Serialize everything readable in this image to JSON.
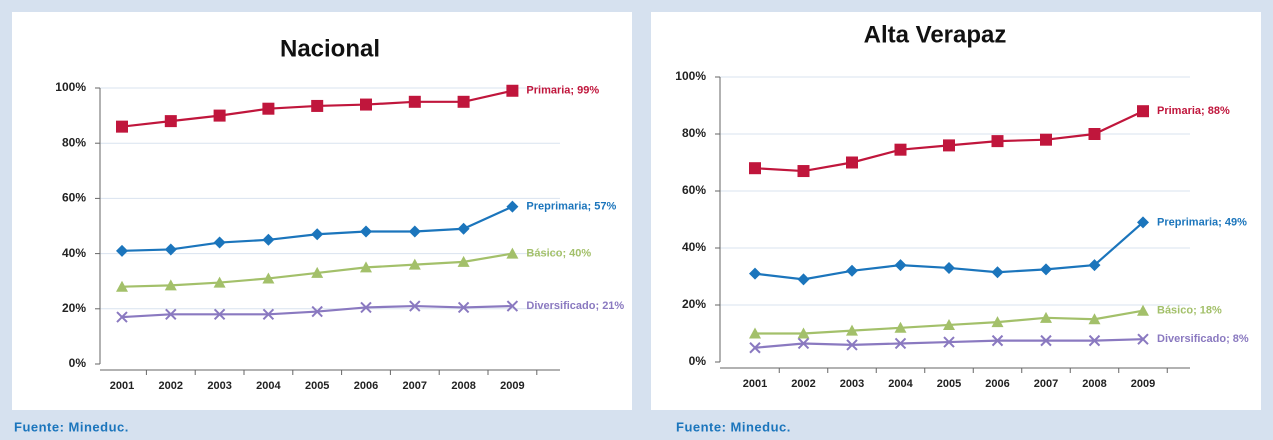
{
  "chart_data": [
    {
      "type": "line",
      "title": "Nacional",
      "source": "Fuente: Mineduc.",
      "categories": [
        "2001",
        "2002",
        "2003",
        "2004",
        "2005",
        "2006",
        "2007",
        "2008",
        "2009"
      ],
      "ylim": [
        0,
        100
      ],
      "yticks": [
        {
          "value": 0,
          "label": "0%"
        },
        {
          "value": 20,
          "label": "20%"
        },
        {
          "value": 40,
          "label": "40%"
        },
        {
          "value": 60,
          "label": "60%"
        },
        {
          "value": 80,
          "label": "80%"
        },
        {
          "value": 100,
          "label": "100%"
        }
      ],
      "grid": true,
      "series": [
        {
          "name": "Primaria",
          "color": "#c0163c",
          "marker": "square",
          "values": [
            86,
            88,
            90,
            92.5,
            93.5,
            94,
            95,
            95,
            99
          ],
          "value_labels": [
            null,
            null,
            null,
            null,
            null,
            null,
            null,
            null,
            "Primaria; 99%"
          ]
        },
        {
          "name": "Preprimaria",
          "color": "#1b75bc",
          "marker": "diamond",
          "values": [
            41,
            41.5,
            44,
            45,
            47,
            48,
            48,
            49,
            57
          ],
          "value_labels": [
            null,
            null,
            null,
            null,
            null,
            null,
            null,
            null,
            "Preprimaria; 57%"
          ]
        },
        {
          "name": "Básico",
          "color": "#a3c06a",
          "marker": "triangle",
          "values": [
            28,
            28.5,
            29.5,
            31,
            33,
            35,
            36,
            37,
            40
          ],
          "value_labels": [
            null,
            null,
            null,
            null,
            null,
            null,
            null,
            null,
            "Básico; 40%"
          ]
        },
        {
          "name": "Diversificado",
          "color": "#8a79c0",
          "marker": "x",
          "values": [
            17,
            18,
            18,
            18,
            19,
            20.5,
            21,
            20.5,
            21
          ],
          "value_labels": [
            null,
            null,
            null,
            null,
            null,
            null,
            null,
            null,
            "Diversificado; 21%"
          ]
        }
      ]
    },
    {
      "type": "line",
      "title": "Alta Verapaz",
      "source": "Fuente: Mineduc.",
      "categories": [
        "2001",
        "2002",
        "2003",
        "2004",
        "2005",
        "2006",
        "2007",
        "2008",
        "2009"
      ],
      "ylim": [
        0,
        100
      ],
      "yticks": [
        {
          "value": 0,
          "label": "0%"
        },
        {
          "value": 20,
          "label": "20%"
        },
        {
          "value": 40,
          "label": "40%"
        },
        {
          "value": 60,
          "label": "60%"
        },
        {
          "value": 80,
          "label": "80%"
        },
        {
          "value": 100,
          "label": "100%"
        }
      ],
      "grid": true,
      "series": [
        {
          "name": "Primaria",
          "color": "#c0163c",
          "marker": "square",
          "values": [
            68,
            67,
            70,
            74.5,
            76,
            77.5,
            78,
            80,
            88
          ],
          "value_labels": [
            null,
            null,
            null,
            null,
            null,
            null,
            null,
            null,
            "Primaria; 88%"
          ]
        },
        {
          "name": "Preprimaria",
          "color": "#1b75bc",
          "marker": "diamond",
          "values": [
            31,
            29,
            32,
            34,
            33,
            31.5,
            32.5,
            34,
            49
          ],
          "value_labels": [
            null,
            null,
            null,
            null,
            null,
            null,
            null,
            null,
            "Preprimaria; 49%"
          ]
        },
        {
          "name": "Básico",
          "color": "#a3c06a",
          "marker": "triangle",
          "values": [
            10,
            10,
            11,
            12,
            13,
            14,
            15.5,
            15,
            18
          ],
          "value_labels": [
            null,
            null,
            null,
            null,
            null,
            null,
            null,
            null,
            "Básico; 18%"
          ]
        },
        {
          "name": "Diversificado",
          "color": "#8a79c0",
          "marker": "x",
          "values": [
            5,
            6.5,
            6,
            6.5,
            7,
            7.5,
            7.5,
            7.5,
            8
          ],
          "value_labels": [
            null,
            null,
            null,
            null,
            null,
            null,
            null,
            null,
            "Diversificado; 8%"
          ]
        }
      ]
    }
  ]
}
